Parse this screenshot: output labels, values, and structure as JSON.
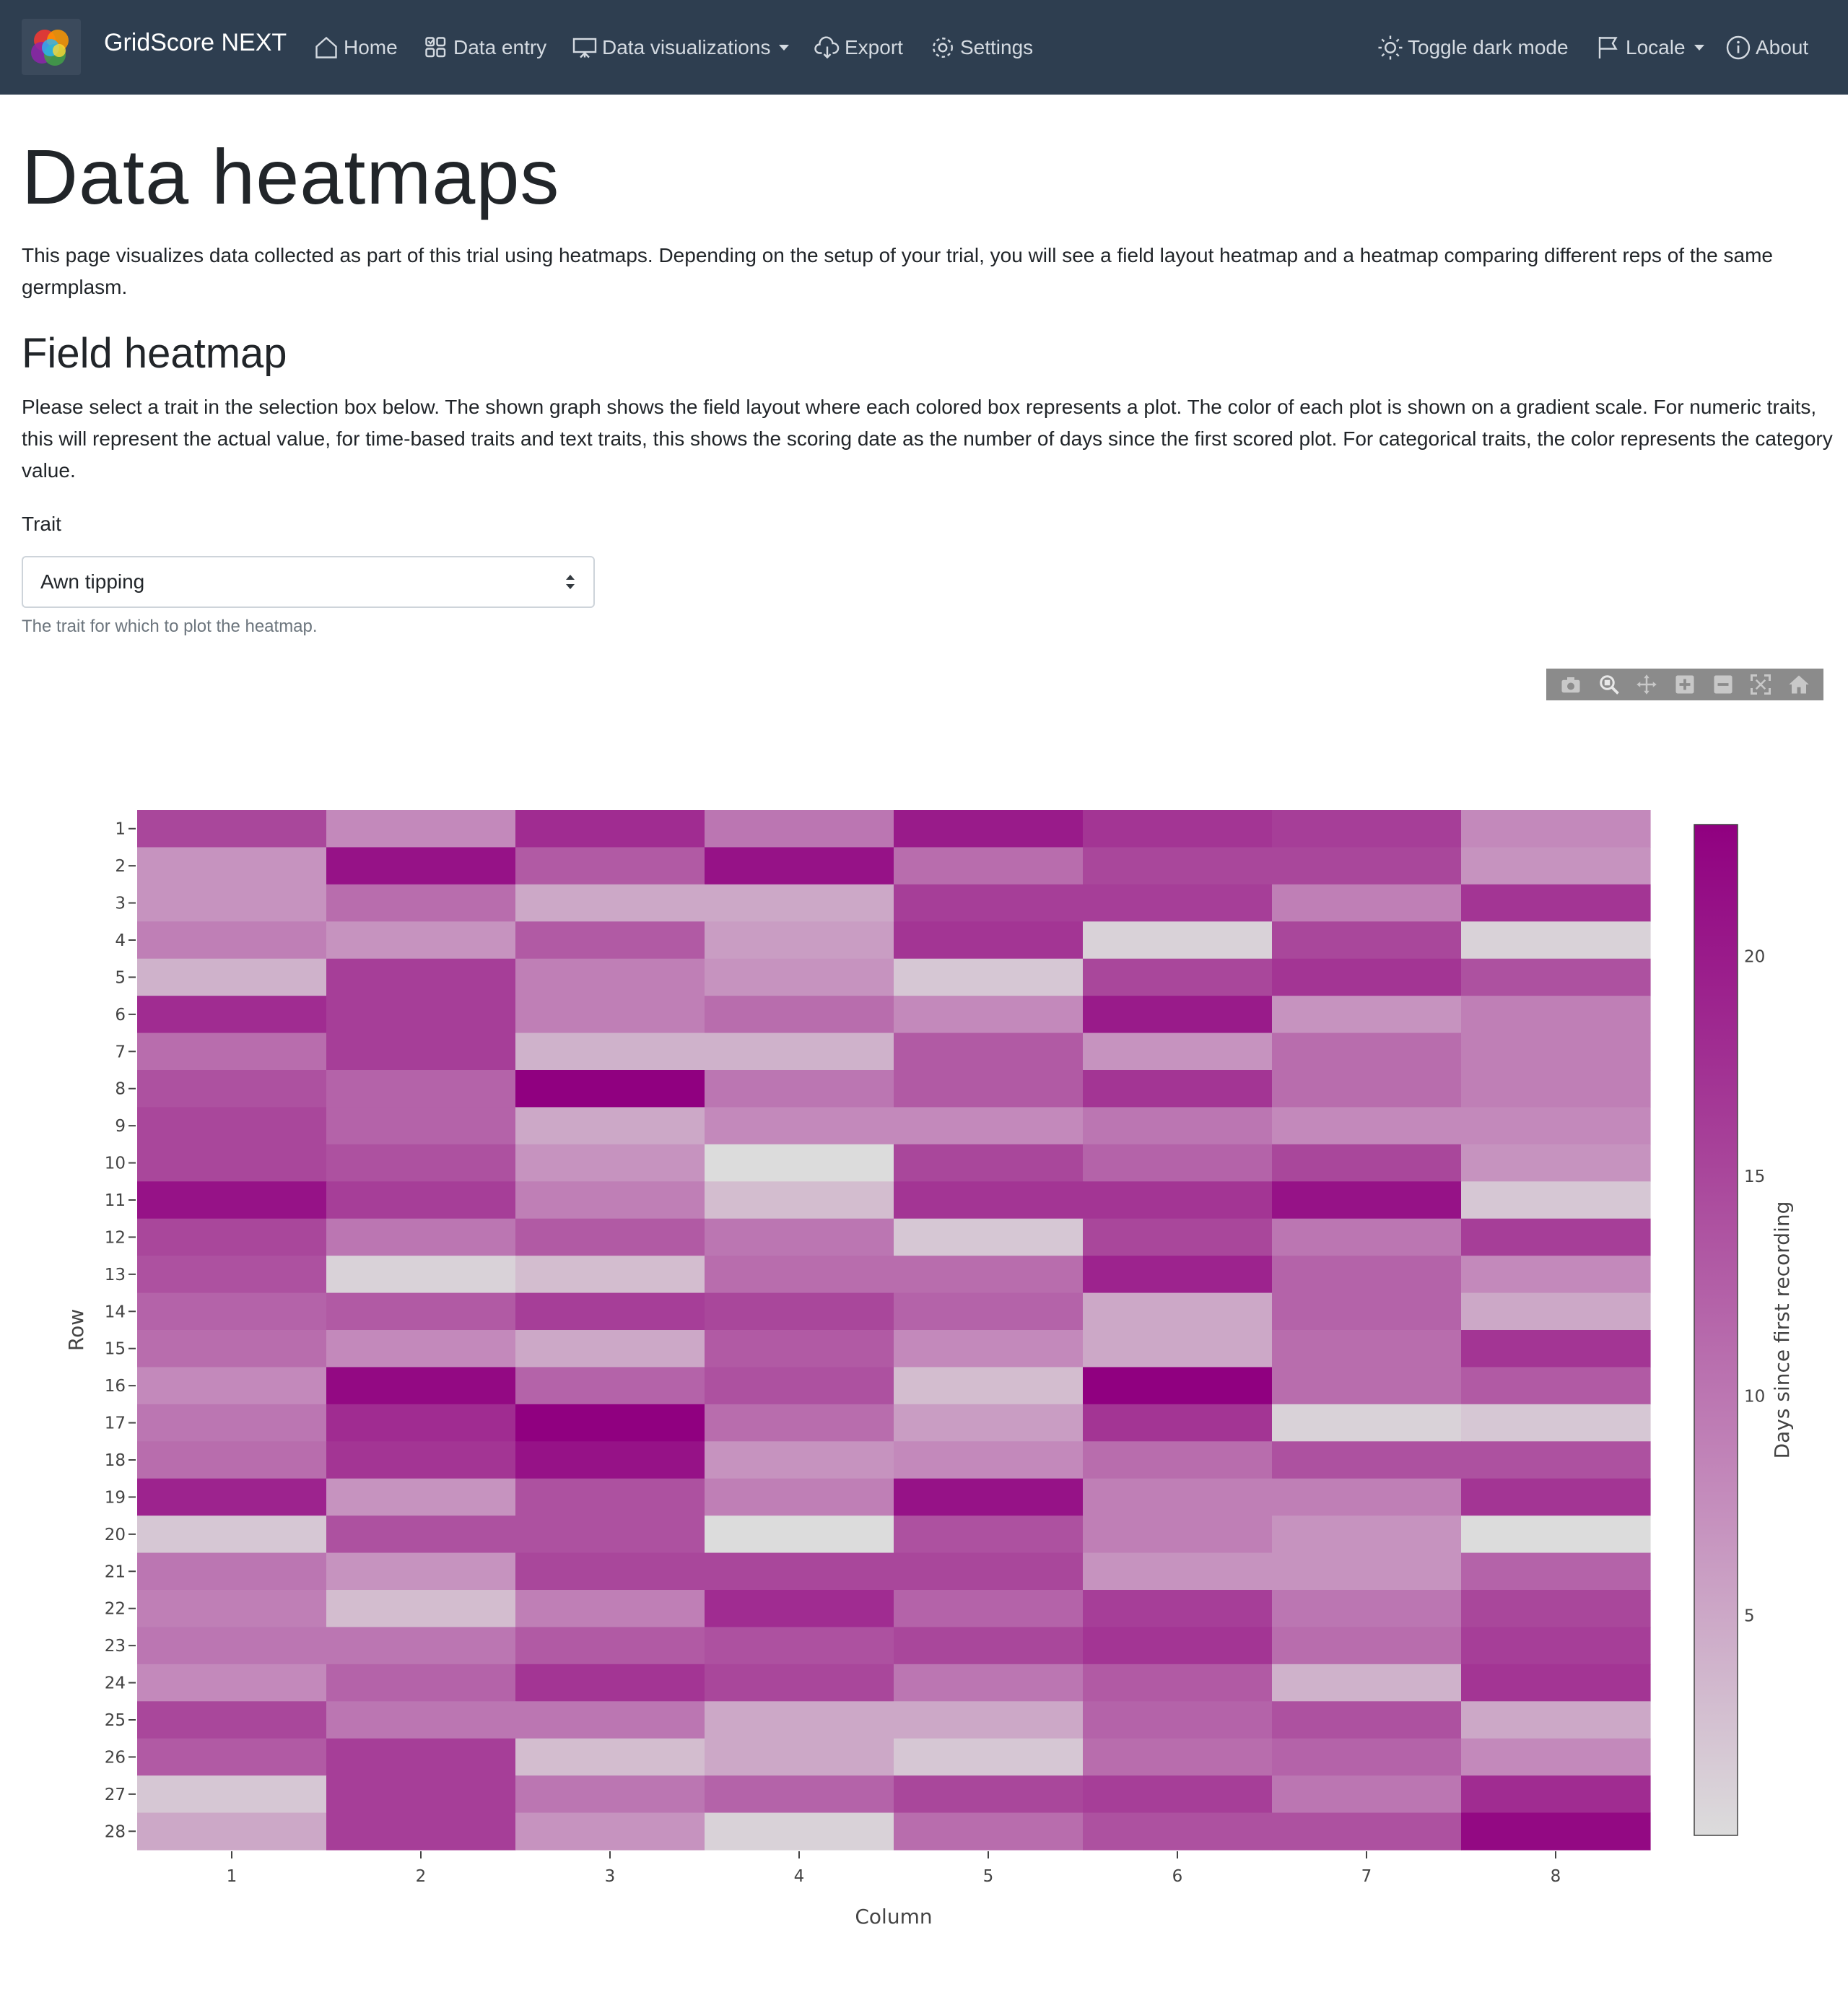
{
  "navbar": {
    "brand": "GridScore NEXT",
    "items": [
      {
        "label": "Home",
        "icon": "home-icon"
      },
      {
        "label": "Data entry",
        "icon": "grid-icon"
      },
      {
        "label": "Data visualizations",
        "icon": "presentation-icon",
        "dropdown": true
      },
      {
        "label": "Export",
        "icon": "cloud-download-icon"
      },
      {
        "label": "Settings",
        "icon": "gear-icon"
      }
    ],
    "right_items": [
      {
        "label": "Toggle dark mode",
        "icon": "sun-icon"
      },
      {
        "label": "Locale",
        "icon": "flag-icon",
        "dropdown": true
      },
      {
        "label": "About",
        "icon": "info-icon"
      }
    ]
  },
  "page": {
    "title": "Data heatmaps",
    "intro": "This page visualizes data collected as part of this trial using heatmaps. Depending on the setup of your trial, you will see a field layout heatmap and a heatmap comparing different reps of the same germplasm.",
    "section_title": "Field heatmap",
    "section_text": "Please select a trait in the selection box below. The shown graph shows the field layout where each colored box represents a plot. The color of each plot is shown on a gradient scale. For numeric traits, this will represent the actual value, for time-based traits and text traits, this shows the scoring date as the number of days since the first scored plot. For categorical traits, the color represents the category value.",
    "trait_label": "Trait",
    "trait_value": "Awn tipping",
    "trait_help": "The trait for which to plot the heatmap."
  },
  "modebar": [
    "camera-icon",
    "zoom-icon",
    "pan-icon",
    "zoom-in-icon",
    "zoom-out-icon",
    "autoscale-icon",
    "reset-axes-icon"
  ],
  "chart_data": {
    "type": "heatmap",
    "xlabel": "Column",
    "ylabel": "Row",
    "colorbar_title": "Days since first recording",
    "colorbar_ticks": [
      5,
      10,
      15,
      20
    ],
    "zrange": [
      0,
      23
    ],
    "colorscale": [
      "#dcdcdc",
      "#c48cbc",
      "#a8449a",
      "#900080"
    ],
    "columns": [
      1,
      2,
      3,
      4,
      5,
      6,
      7,
      8
    ],
    "rows": [
      1,
      2,
      3,
      4,
      5,
      6,
      7,
      8,
      9,
      10,
      11,
      12,
      13,
      14,
      15,
      16,
      17,
      18,
      19,
      20,
      21,
      22,
      23,
      24,
      25,
      26,
      27,
      28
    ],
    "z": [
      [
        15,
        8,
        18,
        10,
        20,
        17,
        16,
        8
      ],
      [
        7,
        21,
        13,
        21,
        11,
        15,
        15,
        7
      ],
      [
        7,
        11,
        5,
        5,
        16,
        16,
        9,
        17
      ],
      [
        9,
        7,
        13,
        6,
        17,
        1,
        15,
        1
      ],
      [
        4,
        16,
        9,
        7,
        2,
        15,
        17,
        14
      ],
      [
        18,
        16,
        9,
        11,
        8,
        20,
        7,
        9
      ],
      [
        11,
        16,
        4,
        4,
        13,
        7,
        11,
        9
      ],
      [
        14,
        12,
        23,
        10,
        13,
        17,
        11,
        9
      ],
      [
        15,
        12,
        5,
        8,
        8,
        10,
        8,
        8
      ],
      [
        15,
        14,
        7,
        0,
        15,
        12,
        15,
        7
      ],
      [
        21,
        16,
        9,
        3,
        17,
        17,
        21,
        2
      ],
      [
        15,
        10,
        13,
        10,
        2,
        15,
        10,
        16
      ],
      [
        14,
        1,
        3,
        11,
        11,
        19,
        12,
        8
      ],
      [
        12,
        13,
        16,
        15,
        12,
        5,
        12,
        5
      ],
      [
        11,
        8,
        5,
        13,
        8,
        5,
        11,
        17
      ],
      [
        8,
        22,
        12,
        14,
        3,
        23,
        11,
        13
      ],
      [
        10,
        18,
        23,
        11,
        6,
        17,
        1,
        2
      ],
      [
        11,
        17,
        21,
        7,
        8,
        11,
        14,
        14
      ],
      [
        19,
        7,
        14,
        9,
        21,
        9,
        9,
        17
      ],
      [
        2,
        14,
        14,
        0,
        14,
        9,
        7,
        0
      ],
      [
        10,
        7,
        15,
        15,
        15,
        7,
        7,
        12
      ],
      [
        9,
        3,
        9,
        18,
        12,
        16,
        10,
        15
      ],
      [
        10,
        10,
        13,
        14,
        15,
        17,
        11,
        16
      ],
      [
        8,
        12,
        17,
        15,
        10,
        13,
        4,
        17
      ],
      [
        15,
        10,
        10,
        5,
        5,
        12,
        14,
        5
      ],
      [
        13,
        16,
        3,
        5,
        2,
        11,
        12,
        8
      ],
      [
        2,
        16,
        10,
        12,
        15,
        16,
        10,
        18
      ],
      [
        5,
        16,
        7,
        1,
        11,
        14,
        14,
        22
      ]
    ]
  }
}
